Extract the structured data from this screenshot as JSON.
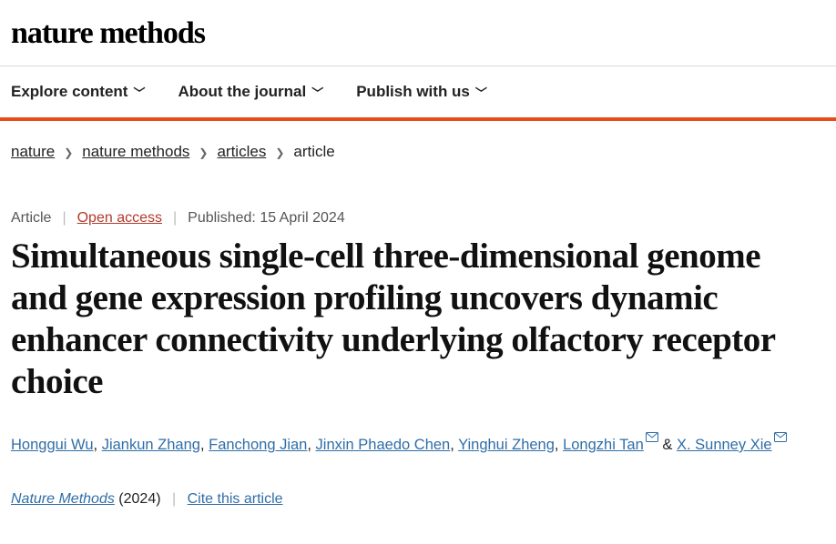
{
  "header": {
    "site_title": "nature methods"
  },
  "nav": {
    "items": [
      {
        "label": "Explore content"
      },
      {
        "label": "About the journal"
      },
      {
        "label": "Publish with us"
      }
    ]
  },
  "accent_color": "#e64d1b",
  "breadcrumbs": {
    "items": [
      {
        "label": "nature"
      },
      {
        "label": "nature methods"
      },
      {
        "label": "articles"
      }
    ],
    "current": "article"
  },
  "meta": {
    "type": "Article",
    "open_access": "Open access",
    "published": "Published: 15 April 2024"
  },
  "article": {
    "title": "Simultaneous single-cell three-dimensional genome and gene expression profiling uncovers dynamic enhancer connectivity underlying olfactory receptor choice"
  },
  "authors": [
    {
      "name": "Honggui Wu",
      "corresponding": false
    },
    {
      "name": "Jiankun Zhang",
      "corresponding": false
    },
    {
      "name": "Fanchong Jian",
      "corresponding": false
    },
    {
      "name": "Jinxin Phaedo Chen",
      "corresponding": false
    },
    {
      "name": "Yinghui Zheng",
      "corresponding": false
    },
    {
      "name": "Longzhi Tan",
      "corresponding": true
    },
    {
      "name": "X. Sunney Xie",
      "corresponding": true
    }
  ],
  "journal": {
    "name": "Nature Methods",
    "year": "(2024)",
    "cite": "Cite this article"
  }
}
